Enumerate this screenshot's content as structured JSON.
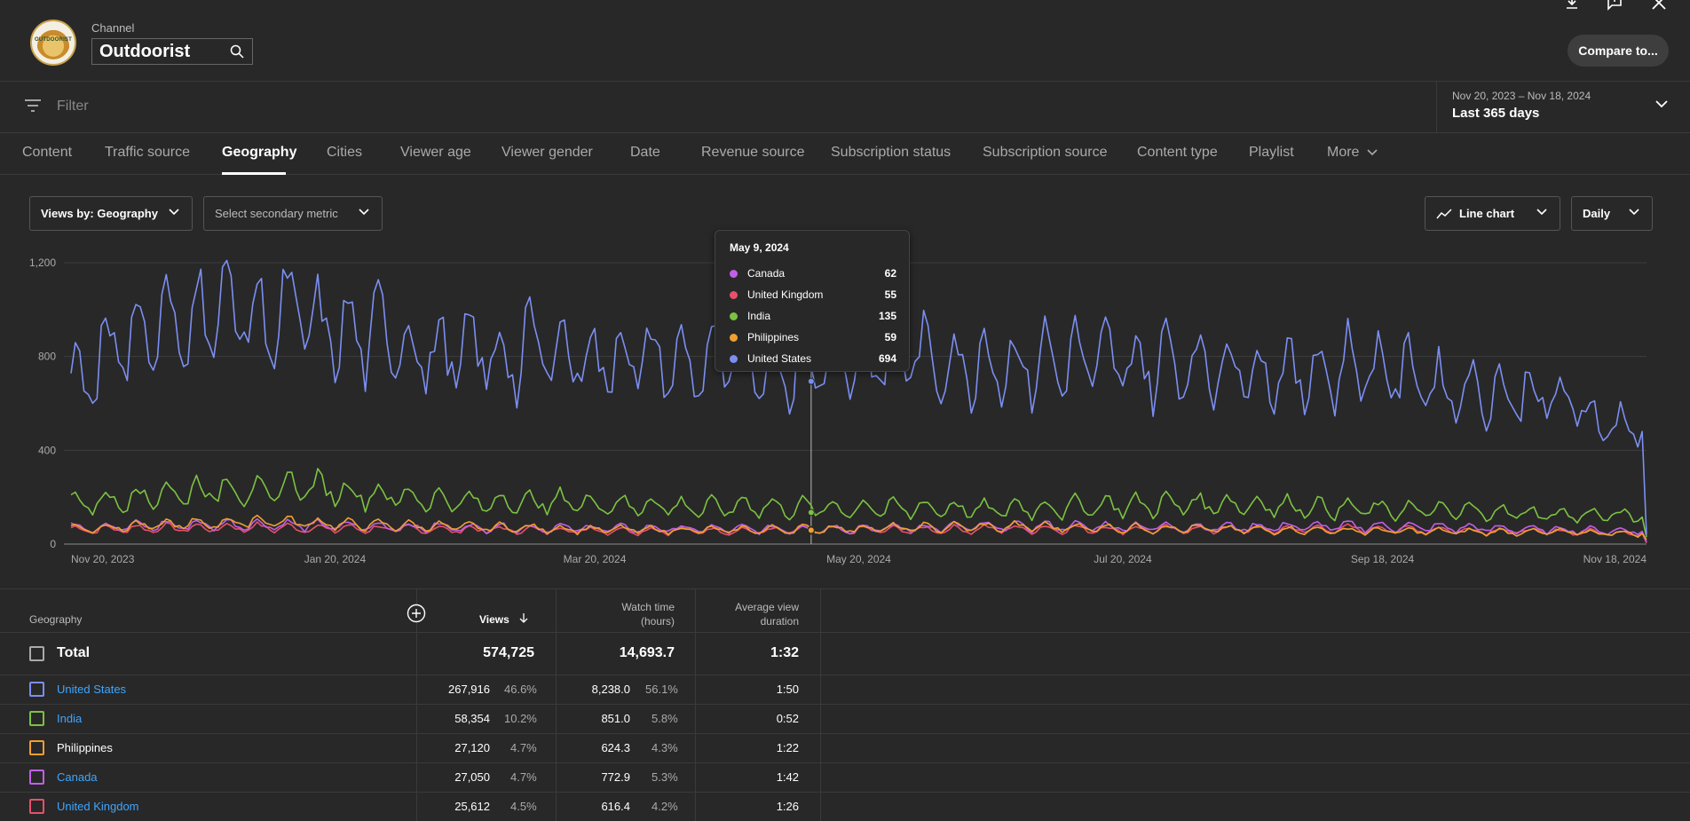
{
  "header": {
    "channel_label": "Channel",
    "channel_name": "Outdoorist",
    "avatar_text": "OUTDOORIST",
    "compare_label": "Compare to..."
  },
  "filter": {
    "placeholder": "Filter",
    "date_range": "Nov 20, 2023 – Nov 18, 2024",
    "date_preset": "Last 365 days"
  },
  "tabs": [
    {
      "label": "Content"
    },
    {
      "label": "Traffic source"
    },
    {
      "label": "Geography",
      "active": true
    },
    {
      "label": "Cities"
    },
    {
      "label": "Viewer age"
    },
    {
      "label": "Viewer gender"
    },
    {
      "label": "Date"
    },
    {
      "label": "Revenue source"
    },
    {
      "label": "Subscription status"
    },
    {
      "label": "Subscription source"
    },
    {
      "label": "Content type"
    },
    {
      "label": "Playlist"
    },
    {
      "label": "More"
    }
  ],
  "controls": {
    "primary_metric": "Views by: Geography",
    "secondary_metric": "Select secondary metric",
    "chart_type": "Line chart",
    "granularity": "Daily"
  },
  "chart_data": {
    "type": "line",
    "x_range": [
      "2023-11-20",
      "2024-11-18"
    ],
    "x_tick_labels": [
      "Nov 20, 2023",
      "Jan 20, 2024",
      "Mar 20, 2024",
      "May 20, 2024",
      "Jul 20, 2024",
      "Sep 18, 2024",
      "Nov 18, 2024"
    ],
    "y_ticks": [
      0,
      400,
      800,
      1200
    ],
    "y_tick_labels": [
      "0",
      "400",
      "800",
      "1,200"
    ],
    "ylim": [
      0,
      1200
    ],
    "grid": true,
    "series": [
      {
        "name": "United States",
        "color": "#7b8ff2",
        "weekly_avg": [
          700,
          830,
          880,
          900,
          960,
          980,
          920,
          960,
          880,
          860,
          880,
          800,
          780,
          800,
          760,
          820,
          800,
          760,
          780,
          760,
          740,
          760,
          760,
          740,
          780,
          770,
          760,
          800,
          760,
          740,
          760,
          740,
          760,
          760,
          760,
          740,
          760,
          740,
          740,
          720,
          700,
          720,
          740,
          720,
          700,
          640,
          640,
          620,
          620,
          580,
          520,
          480,
          40
        ]
      },
      {
        "name": "India",
        "color": "#7cc242",
        "weekly_avg": [
          170,
          180,
          200,
          210,
          220,
          230,
          210,
          240,
          230,
          210,
          200,
          190,
          180,
          170,
          175,
          170,
          175,
          165,
          160,
          160,
          150,
          150,
          160,
          150,
          150,
          145,
          150,
          145,
          150,
          145,
          140,
          150,
          150,
          155,
          160,
          160,
          165,
          165,
          165,
          160,
          155,
          150,
          145,
          140,
          140,
          135,
          135,
          130,
          125,
          120,
          120,
          115,
          30
        ]
      },
      {
        "name": "Philippines",
        "color": "#f0a030",
        "weekly_avg": [
          65,
          70,
          75,
          80,
          85,
          90,
          95,
          90,
          85,
          80,
          78,
          75,
          72,
          70,
          68,
          65,
          62,
          60,
          60,
          58,
          58,
          57,
          58,
          60,
          62,
          64,
          65,
          66,
          68,
          70,
          70,
          72,
          70,
          68,
          66,
          65,
          64,
          62,
          60,
          58,
          58,
          56,
          55,
          54,
          52,
          52,
          50,
          50,
          50,
          48,
          46,
          45,
          20
        ]
      },
      {
        "name": "Canada",
        "color": "#c060e8",
        "weekly_avg": [
          70,
          72,
          75,
          78,
          80,
          82,
          80,
          78,
          76,
          74,
          72,
          70,
          70,
          68,
          68,
          66,
          66,
          65,
          64,
          64,
          63,
          62,
          62,
          62,
          63,
          64,
          65,
          66,
          68,
          70,
          72,
          74,
          74,
          73,
          72,
          72,
          70,
          70,
          70,
          70,
          72,
          72,
          74,
          72,
          70,
          68,
          66,
          62,
          60,
          58,
          56,
          54,
          10
        ]
      },
      {
        "name": "United Kingdom",
        "color": "#e8506a",
        "weekly_avg": [
          60,
          62,
          64,
          66,
          66,
          68,
          68,
          66,
          64,
          64,
          62,
          62,
          60,
          60,
          58,
          58,
          58,
          57,
          56,
          56,
          55,
          55,
          55,
          55,
          56,
          57,
          58,
          58,
          59,
          60,
          62,
          62,
          62,
          62,
          61,
          60,
          60,
          60,
          60,
          60,
          60,
          62,
          62,
          62,
          60,
          58,
          56,
          54,
          52,
          50,
          48,
          46,
          5
        ]
      }
    ]
  },
  "tooltip": {
    "date": "May 9, 2024",
    "rows": [
      {
        "name": "Canada",
        "value": "62",
        "color": "#c060e8"
      },
      {
        "name": "United Kingdom",
        "value": "55",
        "color": "#e8506a"
      },
      {
        "name": "India",
        "value": "135",
        "color": "#7cc242"
      },
      {
        "name": "Philippines",
        "value": "59",
        "color": "#f0a030"
      },
      {
        "name": "United States",
        "value": "694",
        "color": "#7b8ff2"
      }
    ]
  },
  "table": {
    "headers": {
      "geography": "Geography",
      "views": "Views",
      "watch_time_1": "Watch time",
      "watch_time_2": "(hours)",
      "avd_1": "Average view",
      "avd_2": "duration"
    },
    "total": {
      "label": "Total",
      "views": "574,725",
      "watch": "14,693.7",
      "avd": "1:32"
    },
    "rows": [
      {
        "name": "United States",
        "link": true,
        "color": "#7b8ff2",
        "views": "267,916",
        "views_pct": "46.6%",
        "watch": "8,238.0",
        "watch_pct": "56.1%",
        "avd": "1:50"
      },
      {
        "name": "India",
        "link": true,
        "color": "#7cc242",
        "views": "58,354",
        "views_pct": "10.2%",
        "watch": "851.0",
        "watch_pct": "5.8%",
        "avd": "0:52"
      },
      {
        "name": "Philippines",
        "link": false,
        "color": "#f0a030",
        "views": "27,120",
        "views_pct": "4.7%",
        "watch": "624.3",
        "watch_pct": "4.3%",
        "avd": "1:22"
      },
      {
        "name": "Canada",
        "link": true,
        "color": "#c060e8",
        "views": "27,050",
        "views_pct": "4.7%",
        "watch": "772.9",
        "watch_pct": "5.3%",
        "avd": "1:42"
      },
      {
        "name": "United Kingdom",
        "link": true,
        "color": "#e8506a",
        "views": "25,612",
        "views_pct": "4.5%",
        "watch": "616.4",
        "watch_pct": "4.2%",
        "avd": "1:26"
      }
    ]
  }
}
